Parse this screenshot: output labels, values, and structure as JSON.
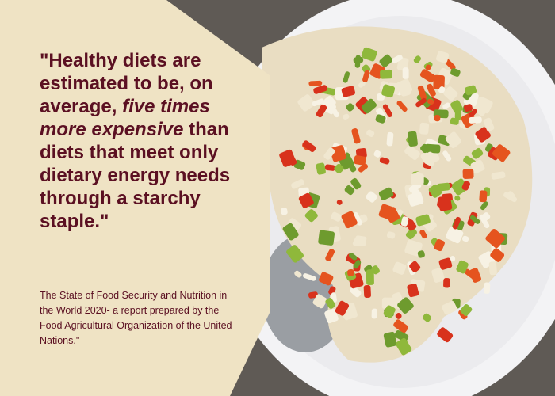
{
  "quote": {
    "before": "\"Healthy diets are estimated to be, on average, ",
    "emphasis": "five times more expensive",
    "after": " than diets that meet only dietary energy needs through a starchy staple.\""
  },
  "source": "The State of Food Security and Nutrition in the World 2020- a report prepared by the Food Agricultural Organization of the United Nations.\""
}
